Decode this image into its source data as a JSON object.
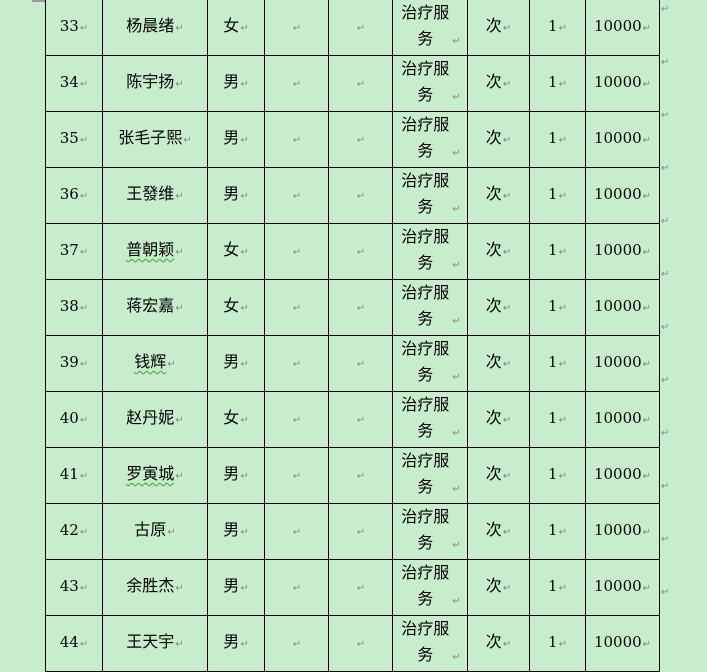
{
  "return_mark": "↵",
  "rows": [
    {
      "no": "33",
      "name": "杨晨绪",
      "gender": "女",
      "col4": "",
      "col5": "",
      "service": "治疗服务",
      "unit": "次",
      "qty": "1",
      "amount": "10000",
      "flagged": false
    },
    {
      "no": "34",
      "name": "陈宇扬",
      "gender": "男",
      "col4": "",
      "col5": "",
      "service": "治疗服务",
      "unit": "次",
      "qty": "1",
      "amount": "10000",
      "flagged": false
    },
    {
      "no": "35",
      "name": "张毛子熙",
      "gender": "男",
      "col4": "",
      "col5": "",
      "service": "治疗服务",
      "unit": "次",
      "qty": "1",
      "amount": "10000",
      "flagged": false
    },
    {
      "no": "36",
      "name": "王發维",
      "gender": "男",
      "col4": "",
      "col5": "",
      "service": "治疗服务",
      "unit": "次",
      "qty": "1",
      "amount": "10000",
      "flagged": false
    },
    {
      "no": "37",
      "name": "普朝颖",
      "gender": "女",
      "col4": "",
      "col5": "",
      "service": "治疗服务",
      "unit": "次",
      "qty": "1",
      "amount": "10000",
      "flagged": true
    },
    {
      "no": "38",
      "name": "蒋宏嘉",
      "gender": "女",
      "col4": "",
      "col5": "",
      "service": "治疗服务",
      "unit": "次",
      "qty": "1",
      "amount": "10000",
      "flagged": false
    },
    {
      "no": "39",
      "name": "钱辉",
      "gender": "男",
      "col4": "",
      "col5": "",
      "service": "治疗服务",
      "unit": "次",
      "qty": "1",
      "amount": "10000",
      "flagged": true
    },
    {
      "no": "40",
      "name": "赵丹妮",
      "gender": "女",
      "col4": "",
      "col5": "",
      "service": "治疗服务",
      "unit": "次",
      "qty": "1",
      "amount": "10000",
      "flagged": false
    },
    {
      "no": "41",
      "name": "罗寅城",
      "gender": "男",
      "col4": "",
      "col5": "",
      "service": "治疗服务",
      "unit": "次",
      "qty": "1",
      "amount": "10000",
      "flagged": true
    },
    {
      "no": "42",
      "name": "古原",
      "gender": "男",
      "col4": "",
      "col5": "",
      "service": "治疗服务",
      "unit": "次",
      "qty": "1",
      "amount": "10000",
      "flagged": false
    },
    {
      "no": "43",
      "name": "余胜杰",
      "gender": "男",
      "col4": "",
      "col5": "",
      "service": "治疗服务",
      "unit": "次",
      "qty": "1",
      "amount": "10000",
      "flagged": false
    },
    {
      "no": "44",
      "name": "王天宇",
      "gender": "男",
      "col4": "",
      "col5": "",
      "service": "治疗服务",
      "unit": "次",
      "qty": "1",
      "amount": "10000",
      "flagged": false
    }
  ],
  "colors": {
    "page_background": "#c7edcc",
    "grammar_underline": "#3aa63a"
  }
}
